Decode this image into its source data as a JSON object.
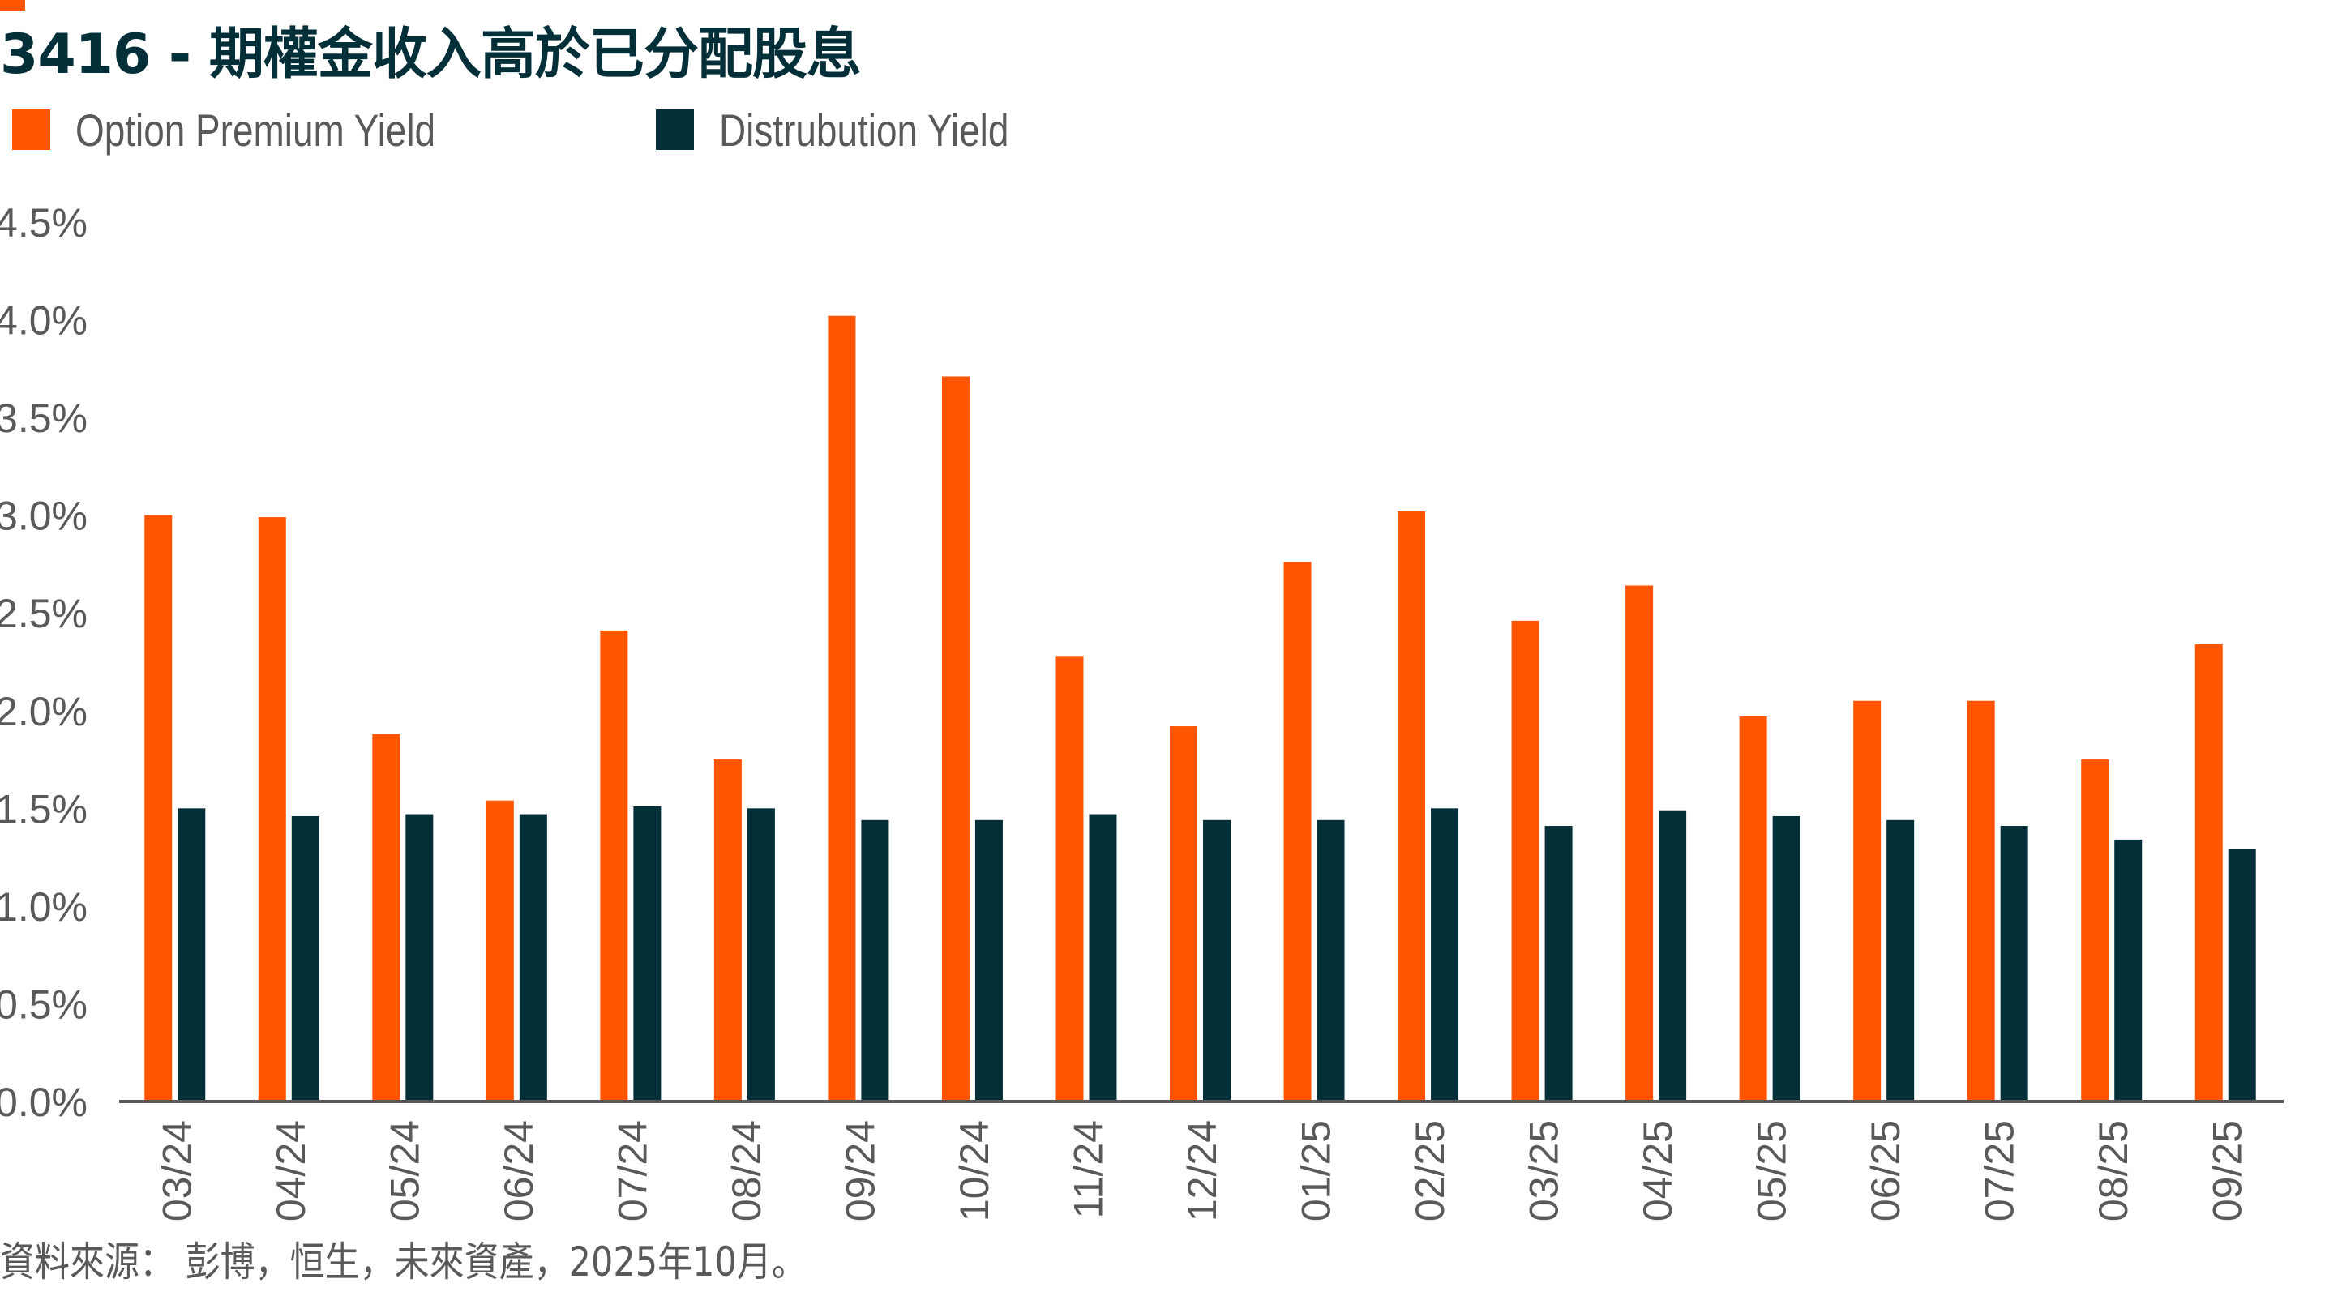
{
  "title": "3416 - 期權金收入高於已分配股息",
  "footer": "資料來源： 彭博，恒生，未來資產，2025年10月。",
  "colors": {
    "accent": "#ff5500",
    "option_premium": "#ff5500",
    "distribution": "#022f38",
    "axis": "#595959",
    "text": "#595959",
    "title": "#022f38"
  },
  "chart_data": {
    "type": "bar",
    "title": "3416 - 期權金收入高於已分配股息",
    "xlabel": "",
    "ylabel": "",
    "ylim": [
      0,
      4.5
    ],
    "yticks": [
      "0.0%",
      "0.5%",
      "1.0%",
      "1.5%",
      "2.0%",
      "2.5%",
      "3.0%",
      "3.5%",
      "4.0%",
      "4.5%"
    ],
    "ytick_values": [
      0,
      0.5,
      1.0,
      1.5,
      2.0,
      2.5,
      3.0,
      3.5,
      4.0,
      4.5
    ],
    "grid": false,
    "legend_position": "top-left",
    "categories": [
      "03/24",
      "04/24",
      "05/24",
      "06/24",
      "07/24",
      "08/24",
      "09/24",
      "10/24",
      "11/24",
      "12/24",
      "01/25",
      "02/25",
      "03/25",
      "04/25",
      "05/25",
      "06/25",
      "07/25",
      "08/25",
      "09/25"
    ],
    "series": [
      {
        "name": "Option Premium Yield",
        "color": "#ff5500",
        "values": [
          3.0,
          2.99,
          1.88,
          1.54,
          2.41,
          1.75,
          4.02,
          3.71,
          2.28,
          1.92,
          2.76,
          3.02,
          2.46,
          2.64,
          1.97,
          2.05,
          2.05,
          1.75,
          2.34
        ]
      },
      {
        "name": "Distrubution Yield",
        "color": "#022f38",
        "values": [
          1.5,
          1.46,
          1.47,
          1.47,
          1.51,
          1.5,
          1.44,
          1.44,
          1.47,
          1.44,
          1.44,
          1.5,
          1.41,
          1.49,
          1.46,
          1.44,
          1.41,
          1.34,
          1.29
        ]
      }
    ]
  }
}
